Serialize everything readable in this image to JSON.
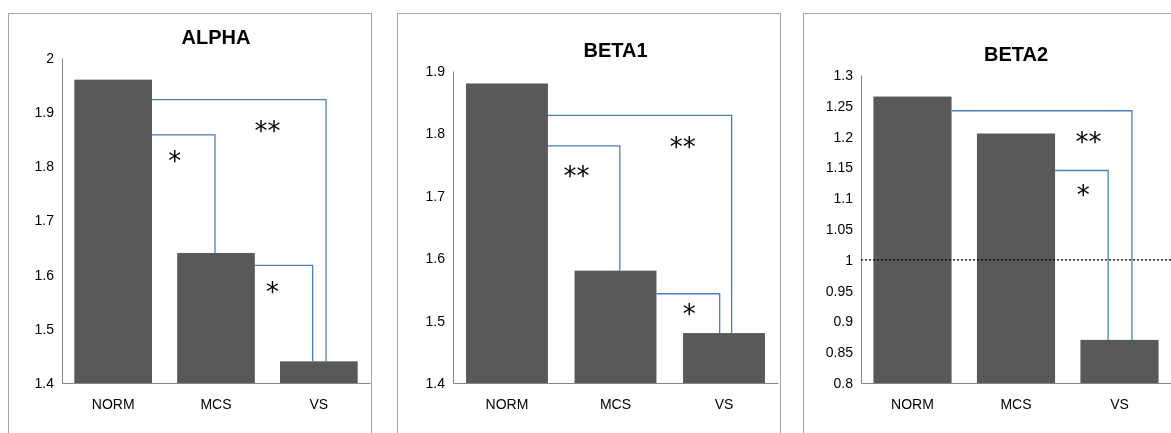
{
  "chart_data": [
    {
      "type": "bar",
      "title": "ALPHA",
      "categories": [
        "NORM",
        "MCS",
        "VS"
      ],
      "values": [
        1.96,
        1.64,
        1.44
      ],
      "color": "#595959",
      "ylim": [
        1.4,
        2
      ],
      "yticks": [
        1.4,
        1.5,
        1.6,
        1.7,
        1.8,
        1.9,
        2
      ],
      "annotations": [
        "**",
        "*",
        "*"
      ]
    },
    {
      "type": "bar",
      "title": "BETA1",
      "categories": [
        "NORM",
        "MCS",
        "VS"
      ],
      "values": [
        1.88,
        1.58,
        1.48
      ],
      "color": "#595959",
      "ylim": [
        1.4,
        1.9
      ],
      "yticks": [
        1.4,
        1.5,
        1.6,
        1.7,
        1.8,
        1.9
      ],
      "annotations": [
        "**",
        "**",
        "*"
      ]
    },
    {
      "type": "bar",
      "title": "BETA2",
      "categories": [
        "NORM",
        "MCS",
        "VS"
      ],
      "values": [
        1.265,
        1.205,
        0.87
      ],
      "color": "#595959",
      "ylim": [
        0.8,
        1.3
      ],
      "yticks": [
        0.8,
        0.85,
        0.9,
        0.95,
        1,
        1.05,
        1.1,
        1.15,
        1.2,
        1.25,
        1.3
      ],
      "ref_lines": [
        {
          "axis": "y",
          "value": 1,
          "color": "#000000",
          "line_style": "dotted"
        }
      ],
      "annotations": [
        "**",
        "*"
      ]
    }
  ]
}
